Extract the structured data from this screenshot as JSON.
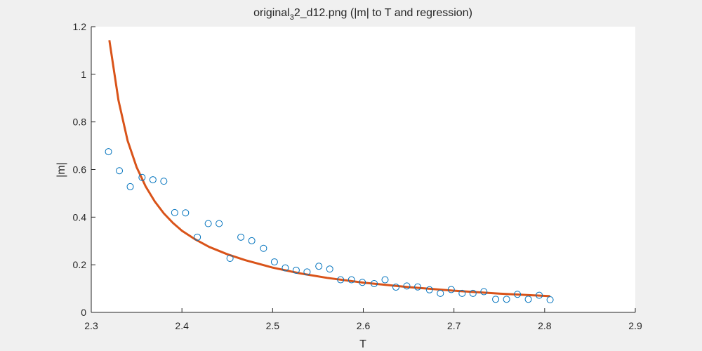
{
  "figure": {
    "background": "#f0f0f0"
  },
  "chart_data": {
    "type": "scatter",
    "title_parts": {
      "before": "original",
      "sub": "3",
      "after": "2_d12.png (|m| to T and regression)"
    },
    "xlabel": "T",
    "ylabel": "|m|",
    "xlim": [
      2.3,
      2.9
    ],
    "ylim": [
      0,
      1.2
    ],
    "xticks": [
      2.3,
      2.4,
      2.5,
      2.6,
      2.7,
      2.8,
      2.9
    ],
    "yticks": [
      0,
      0.2,
      0.4,
      0.6,
      0.8,
      1,
      1.2
    ],
    "xtick_labels": [
      "2.3",
      "2.4",
      "2.5",
      "2.6",
      "2.7",
      "2.8",
      "2.9"
    ],
    "ytick_labels": [
      "0",
      "0.2",
      "0.4",
      "0.6",
      "0.8",
      "1",
      "1.2"
    ],
    "grid": false,
    "colors": {
      "axes_bg": "#ffffff",
      "axis": "#262626",
      "markers": "#0072bd",
      "regression": "#d95319"
    },
    "series": [
      {
        "kind": "scatter",
        "marker": "circle-open",
        "x": [
          2.319,
          2.331,
          2.343,
          2.356,
          2.368,
          2.38,
          2.392,
          2.404,
          2.417,
          2.429,
          2.441,
          2.453,
          2.465,
          2.477,
          2.49,
          2.502,
          2.514,
          2.526,
          2.538,
          2.551,
          2.563,
          2.575,
          2.587,
          2.599,
          2.612,
          2.624,
          2.636,
          2.648,
          2.66,
          2.673,
          2.685,
          2.697,
          2.709,
          2.721,
          2.733,
          2.746,
          2.758,
          2.77,
          2.782,
          2.794,
          2.806
        ],
        "y": [
          0.675,
          0.595,
          0.528,
          0.567,
          0.557,
          0.551,
          0.419,
          0.418,
          0.316,
          0.373,
          0.373,
          0.227,
          0.316,
          0.301,
          0.269,
          0.212,
          0.187,
          0.177,
          0.17,
          0.194,
          0.182,
          0.137,
          0.137,
          0.126,
          0.121,
          0.137,
          0.106,
          0.111,
          0.107,
          0.095,
          0.08,
          0.096,
          0.08,
          0.08,
          0.087,
          0.055,
          0.055,
          0.076,
          0.055,
          0.072,
          0.053
        ]
      },
      {
        "kind": "line",
        "x": [
          2.32,
          2.33,
          2.34,
          2.35,
          2.36,
          2.37,
          2.38,
          2.39,
          2.4,
          2.415,
          2.43,
          2.45,
          2.47,
          2.5,
          2.53,
          2.56,
          2.6,
          2.65,
          2.7,
          2.75,
          2.806
        ],
        "y": [
          1.143,
          0.89,
          0.722,
          0.61,
          0.529,
          0.466,
          0.416,
          0.376,
          0.343,
          0.306,
          0.275,
          0.244,
          0.219,
          0.188,
          0.164,
          0.145,
          0.125,
          0.106,
          0.091,
          0.079,
          0.068
        ]
      }
    ]
  }
}
